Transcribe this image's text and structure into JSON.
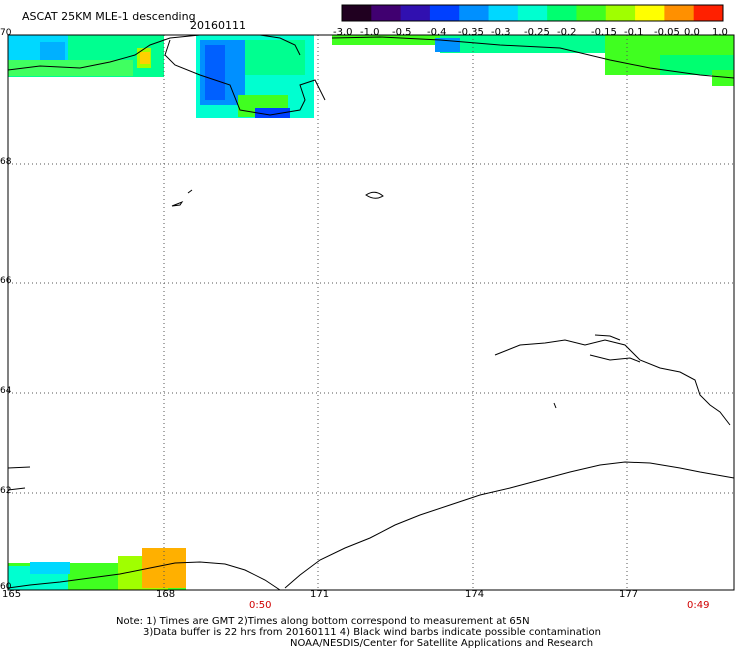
{
  "title": "ASCAT 25KM MLE-1 descending",
  "date": "20160111",
  "colorbar": {
    "labels": [
      "-3.0",
      "-1.0",
      "-0.5",
      "-0.4",
      "-0.35",
      "-0.3",
      "-0.25",
      "-0.2",
      "-0.15",
      "-0.1",
      "-0.05",
      "0.0",
      "1.0"
    ],
    "colors": [
      "#200020",
      "#400070",
      "#3010b0",
      "#0040ff",
      "#0090ff",
      "#00d8ff",
      "#00ffd0",
      "#00ff70",
      "#40ff20",
      "#a0ff00",
      "#ffff00",
      "#ff9000",
      "#ff2000"
    ]
  },
  "axes": {
    "lat_labels": [
      "70",
      "68",
      "66",
      "64",
      "62",
      "60"
    ],
    "lon_labels": [
      "165",
      "168",
      "171",
      "174",
      "177"
    ]
  },
  "times": [
    "0:50",
    "0:49"
  ],
  "notes": [
    "Note: 1) Times are GMT 2)Times along bottom correspond to measurement at 65N",
    "3)Data buffer is 22 hrs from 20160111 4) Black wind barbs indicate possible contamination",
    "NOAA/NESDIS/Center for Satellite Applications and Research"
  ]
}
